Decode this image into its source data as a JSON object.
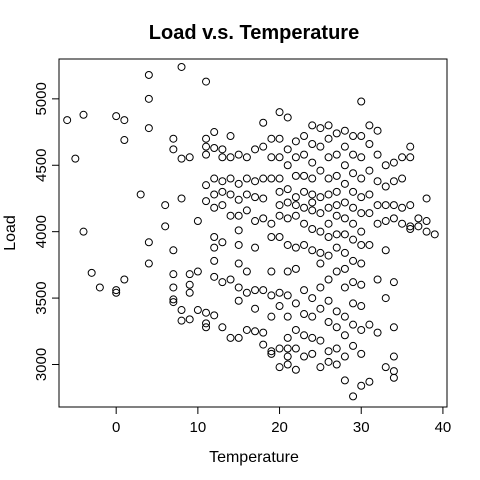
{
  "chart_data": {
    "type": "scatter",
    "title": "Load v.s. Temperature",
    "xlabel": "Temperature",
    "ylabel": "Load",
    "xlim": [
      -7,
      40.5
    ],
    "ylim": [
      2680,
      5300
    ],
    "xticks": [
      0,
      10,
      20,
      30,
      40
    ],
    "yticks": [
      3000,
      3500,
      4000,
      4500,
      5000
    ],
    "grid": false,
    "marker": "open-circle",
    "color": "#000000",
    "points": [
      [
        -6,
        4840
      ],
      [
        -5,
        4550
      ],
      [
        -4,
        4880
      ],
      [
        -4,
        4000
      ],
      [
        -3,
        3690
      ],
      [
        -2,
        3580
      ],
      [
        0,
        4870
      ],
      [
        0,
        3560
      ],
      [
        0,
        3540
      ],
      [
        1,
        4840
      ],
      [
        1,
        4690
      ],
      [
        1,
        3640
      ],
      [
        3,
        4280
      ],
      [
        4,
        5180
      ],
      [
        4,
        5000
      ],
      [
        4,
        4780
      ],
      [
        4,
        3920
      ],
      [
        4,
        3760
      ],
      [
        6,
        4200
      ],
      [
        6,
        4040
      ],
      [
        7,
        4700
      ],
      [
        7,
        4620
      ],
      [
        7,
        3860
      ],
      [
        7,
        3680
      ],
      [
        7,
        3580
      ],
      [
        7,
        3490
      ],
      [
        7,
        3470
      ],
      [
        8,
        5240
      ],
      [
        8,
        4550
      ],
      [
        8,
        4250
      ],
      [
        8,
        3410
      ],
      [
        8,
        3330
      ],
      [
        9,
        4560
      ],
      [
        9,
        3680
      ],
      [
        9,
        3600
      ],
      [
        9,
        3540
      ],
      [
        9,
        3340
      ],
      [
        10,
        4080
      ],
      [
        10,
        3700
      ],
      [
        10,
        3410
      ],
      [
        11,
        5130
      ],
      [
        11,
        4700
      ],
      [
        11,
        4640
      ],
      [
        11,
        4580
      ],
      [
        11,
        4350
      ],
      [
        11,
        4230
      ],
      [
        11,
        3390
      ],
      [
        11,
        3310
      ],
      [
        11,
        3280
      ],
      [
        12,
        4750
      ],
      [
        12,
        4630
      ],
      [
        12,
        4400
      ],
      [
        12,
        4280
      ],
      [
        12,
        4180
      ],
      [
        12,
        3960
      ],
      [
        12,
        3880
      ],
      [
        12,
        3780
      ],
      [
        12,
        3660
      ],
      [
        12,
        3370
      ],
      [
        13,
        4620
      ],
      [
        13,
        4560
      ],
      [
        13,
        4380
      ],
      [
        13,
        4300
      ],
      [
        13,
        4200
      ],
      [
        13,
        3920
      ],
      [
        13,
        3620
      ],
      [
        13,
        3280
      ],
      [
        14,
        4720
      ],
      [
        14,
        4560
      ],
      [
        14,
        4400
      ],
      [
        14,
        4280
      ],
      [
        14,
        4120
      ],
      [
        14,
        3640
      ],
      [
        14,
        3200
      ],
      [
        15,
        4580
      ],
      [
        15,
        4360
      ],
      [
        15,
        4240
      ],
      [
        15,
        4120
      ],
      [
        15,
        4010
      ],
      [
        15,
        3900
      ],
      [
        15,
        3760
      ],
      [
        15,
        3580
      ],
      [
        15,
        3480
      ],
      [
        15,
        3200
      ],
      [
        16,
        4560
      ],
      [
        16,
        4400
      ],
      [
        16,
        4280
      ],
      [
        16,
        4160
      ],
      [
        16,
        3700
      ],
      [
        16,
        3540
      ],
      [
        16,
        3260
      ],
      [
        17,
        4620
      ],
      [
        17,
        4380
      ],
      [
        17,
        4260
      ],
      [
        17,
        4080
      ],
      [
        17,
        3880
      ],
      [
        17,
        3560
      ],
      [
        17,
        3420
      ],
      [
        17,
        3250
      ],
      [
        18,
        4820
      ],
      [
        18,
        4640
      ],
      [
        18,
        4400
      ],
      [
        18,
        4250
      ],
      [
        18,
        4100
      ],
      [
        18,
        3560
      ],
      [
        18,
        3240
      ],
      [
        18,
        3150
      ],
      [
        19,
        4700
      ],
      [
        19,
        4560
      ],
      [
        19,
        4400
      ],
      [
        19,
        4060
      ],
      [
        19,
        3960
      ],
      [
        19,
        3700
      ],
      [
        19,
        3520
      ],
      [
        19,
        3360
      ],
      [
        19,
        3100
      ],
      [
        19,
        3080
      ],
      [
        20,
        4900
      ],
      [
        20,
        4700
      ],
      [
        20,
        4560
      ],
      [
        20,
        4400
      ],
      [
        20,
        4300
      ],
      [
        20,
        4200
      ],
      [
        20,
        4120
      ],
      [
        20,
        3960
      ],
      [
        20,
        3540
      ],
      [
        20,
        3440
      ],
      [
        20,
        3120
      ],
      [
        20,
        2980
      ],
      [
        21,
        4860
      ],
      [
        21,
        4620
      ],
      [
        21,
        4500
      ],
      [
        21,
        4320
      ],
      [
        21,
        4220
      ],
      [
        21,
        4100
      ],
      [
        21,
        3900
      ],
      [
        21,
        3700
      ],
      [
        21,
        3520
      ],
      [
        21,
        3360
      ],
      [
        21,
        3200
      ],
      [
        21,
        3120
      ],
      [
        21,
        3060
      ],
      [
        21,
        3000
      ],
      [
        22,
        4680
      ],
      [
        22,
        4560
      ],
      [
        22,
        4420
      ],
      [
        22,
        4260
      ],
      [
        22,
        4200
      ],
      [
        22,
        4120
      ],
      [
        22,
        3880
      ],
      [
        22,
        3720
      ],
      [
        22,
        3460
      ],
      [
        22,
        3260
      ],
      [
        22,
        3120
      ],
      [
        22,
        2960
      ],
      [
        23,
        4720
      ],
      [
        23,
        4580
      ],
      [
        23,
        4420
      ],
      [
        23,
        4300
      ],
      [
        23,
        4180
      ],
      [
        23,
        4060
      ],
      [
        23,
        3900
      ],
      [
        23,
        3560
      ],
      [
        23,
        3380
      ],
      [
        23,
        3220
      ],
      [
        23,
        3060
      ],
      [
        24,
        4800
      ],
      [
        24,
        4660
      ],
      [
        24,
        4520
      ],
      [
        24,
        4400
      ],
      [
        24,
        4280
      ],
      [
        24,
        4220
      ],
      [
        24,
        4160
      ],
      [
        24,
        4020
      ],
      [
        24,
        3860
      ],
      [
        24,
        3500
      ],
      [
        24,
        3360
      ],
      [
        24,
        3200
      ],
      [
        24,
        3080
      ],
      [
        25,
        4780
      ],
      [
        25,
        4640
      ],
      [
        25,
        4460
      ],
      [
        25,
        4260
      ],
      [
        25,
        4140
      ],
      [
        25,
        4000
      ],
      [
        25,
        3840
      ],
      [
        25,
        3760
      ],
      [
        25,
        3580
      ],
      [
        25,
        3420
      ],
      [
        25,
        3180
      ],
      [
        25,
        2980
      ],
      [
        26,
        4800
      ],
      [
        26,
        4700
      ],
      [
        26,
        4560
      ],
      [
        26,
        4400
      ],
      [
        26,
        4280
      ],
      [
        26,
        4180
      ],
      [
        26,
        4060
      ],
      [
        26,
        3960
      ],
      [
        26,
        3820
      ],
      [
        26,
        3640
      ],
      [
        26,
        3480
      ],
      [
        26,
        3320
      ],
      [
        26,
        3100
      ],
      [
        26,
        3020
      ],
      [
        27,
        4740
      ],
      [
        27,
        4580
      ],
      [
        27,
        4420
      ],
      [
        27,
        4300
      ],
      [
        27,
        4200
      ],
      [
        27,
        4120
      ],
      [
        27,
        3980
      ],
      [
        27,
        3880
      ],
      [
        27,
        3700
      ],
      [
        27,
        3400
      ],
      [
        27,
        3280
      ],
      [
        27,
        3120
      ],
      [
        27,
        3000
      ],
      [
        28,
        4760
      ],
      [
        28,
        4640
      ],
      [
        28,
        4500
      ],
      [
        28,
        4360
      ],
      [
        28,
        4220
      ],
      [
        28,
        4100
      ],
      [
        28,
        3980
      ],
      [
        28,
        3840
      ],
      [
        28,
        3720
      ],
      [
        28,
        3580
      ],
      [
        28,
        3360
      ],
      [
        28,
        3220
      ],
      [
        28,
        3060
      ],
      [
        28,
        2880
      ],
      [
        29,
        4720
      ],
      [
        29,
        4580
      ],
      [
        29,
        4440
      ],
      [
        29,
        4300
      ],
      [
        29,
        4180
      ],
      [
        29,
        4060
      ],
      [
        29,
        3940
      ],
      [
        29,
        3780
      ],
      [
        29,
        3620
      ],
      [
        29,
        3460
      ],
      [
        29,
        3300
      ],
      [
        29,
        3140
      ],
      [
        29,
        2760
      ],
      [
        30,
        4980
      ],
      [
        30,
        4720
      ],
      [
        30,
        4560
      ],
      [
        30,
        4400
      ],
      [
        30,
        4260
      ],
      [
        30,
        4140
      ],
      [
        30,
        4000
      ],
      [
        30,
        3900
      ],
      [
        30,
        3760
      ],
      [
        30,
        3600
      ],
      [
        30,
        3440
      ],
      [
        30,
        3260
      ],
      [
        30,
        3080
      ],
      [
        30,
        2840
      ],
      [
        31,
        4800
      ],
      [
        31,
        4660
      ],
      [
        31,
        4460
      ],
      [
        31,
        4280
      ],
      [
        31,
        4140
      ],
      [
        31,
        3900
      ],
      [
        31,
        3300
      ],
      [
        31,
        2870
      ],
      [
        32,
        4760
      ],
      [
        32,
        4580
      ],
      [
        32,
        4380
      ],
      [
        32,
        4200
      ],
      [
        32,
        4060
      ],
      [
        32,
        3640
      ],
      [
        32,
        3240
      ],
      [
        33,
        4500
      ],
      [
        33,
        4340
      ],
      [
        33,
        4200
      ],
      [
        33,
        4080
      ],
      [
        33,
        3860
      ],
      [
        33,
        3500
      ],
      [
        33,
        2980
      ],
      [
        34,
        4520
      ],
      [
        34,
        4380
      ],
      [
        34,
        4200
      ],
      [
        34,
        4100
      ],
      [
        34,
        3620
      ],
      [
        34,
        3280
      ],
      [
        34,
        3060
      ],
      [
        34,
        2950
      ],
      [
        34,
        2900
      ],
      [
        35,
        4560
      ],
      [
        35,
        4400
      ],
      [
        35,
        4180
      ],
      [
        35,
        4060
      ],
      [
        36,
        4640
      ],
      [
        36,
        4560
      ],
      [
        36,
        4200
      ],
      [
        36,
        4040
      ],
      [
        36,
        4020
      ],
      [
        37,
        4100
      ],
      [
        37,
        4040
      ],
      [
        38,
        4250
      ],
      [
        38,
        4080
      ],
      [
        38,
        4000
      ],
      [
        39,
        3980
      ]
    ]
  }
}
